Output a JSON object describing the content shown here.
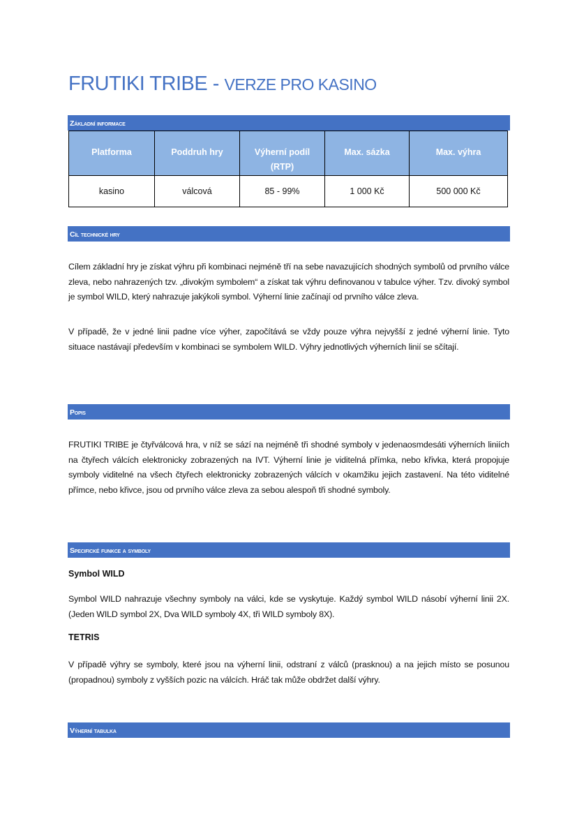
{
  "title": {
    "main": "FRUTIKI TRIBE - ",
    "sub": "VERZE PRO KASINO"
  },
  "colors": {
    "accent": "#4472c4",
    "table_header": "#8eb4e3"
  },
  "sections": {
    "basic": {
      "heading": "Základní informace",
      "table": {
        "headers": [
          "Platforma",
          "Poddruh hry",
          "Výherní podíl (RTP)",
          "Max. sázka",
          "Max. výhra"
        ],
        "row": [
          "kasino",
          "válcová",
          "85 - 99%",
          "1 000 Kč",
          "500 000 Kč"
        ]
      }
    },
    "goal": {
      "heading": "Cíl technické hry",
      "paragraphs": [
        "Cílem základní hry je získat výhru při kombinaci nejméně tří na sebe navazujících shodných symbolů od prvního válce zleva, nebo nahrazených tzv. „divokým symbolem“ a získat tak výhru definovanou v tabulce výher. Tzv. divoký symbol je symbol WILD, který nahrazuje jakýkoli symbol. Výherní linie začínají od prvního válce zleva.",
        "V případě, že v jedné linii padne více výher, započítává se vždy pouze výhra nejvyšší z jedné výherní linie. Tyto situace nastávají především v kombinaci se symbolem WILD. Výhry jednotlivých výherních linií se sčítají."
      ]
    },
    "description": {
      "heading": "Popis",
      "paragraph": "FRUTIKI TRIBE je čtyřválcová hra, v níž se sází na nejméně tři shodné symboly v jedenaosmdesáti výherních liniích na čtyřech válcích elektronicky zobrazených na IVT. Výherní linie je viditelná přímka, nebo křivka, která propojuje symboly viditelné na všech čtyřech elektronicky zobrazených válcích v okamžiku jejich zastavení. Na této viditelné přímce, nebo křivce, jsou od prvního válce zleva za sebou alespoň tři shodné symboly."
    },
    "features": {
      "heading": "Specifické funkce a symboly",
      "wild": {
        "title": "Symbol WILD",
        "text": "Symbol WILD nahrazuje všechny symboly na válci, kde se vyskytuje. Každý symbol WILD násobí výherní linii 2X. (Jeden WILD symbol 2X, Dva WILD symboly 4X, tři WILD symboly 8X)."
      },
      "tetris": {
        "title": "TETRIS",
        "text": "V případě výhry se symboly, které jsou na výherní linii, odstraní z válců (prasknou) a na jejich místo se posunou (propadnou) symboly z vyšších pozic na válcích. Hráč tak může obdržet další výhry."
      }
    },
    "paytable": {
      "heading": "Výherní tabulka"
    }
  }
}
